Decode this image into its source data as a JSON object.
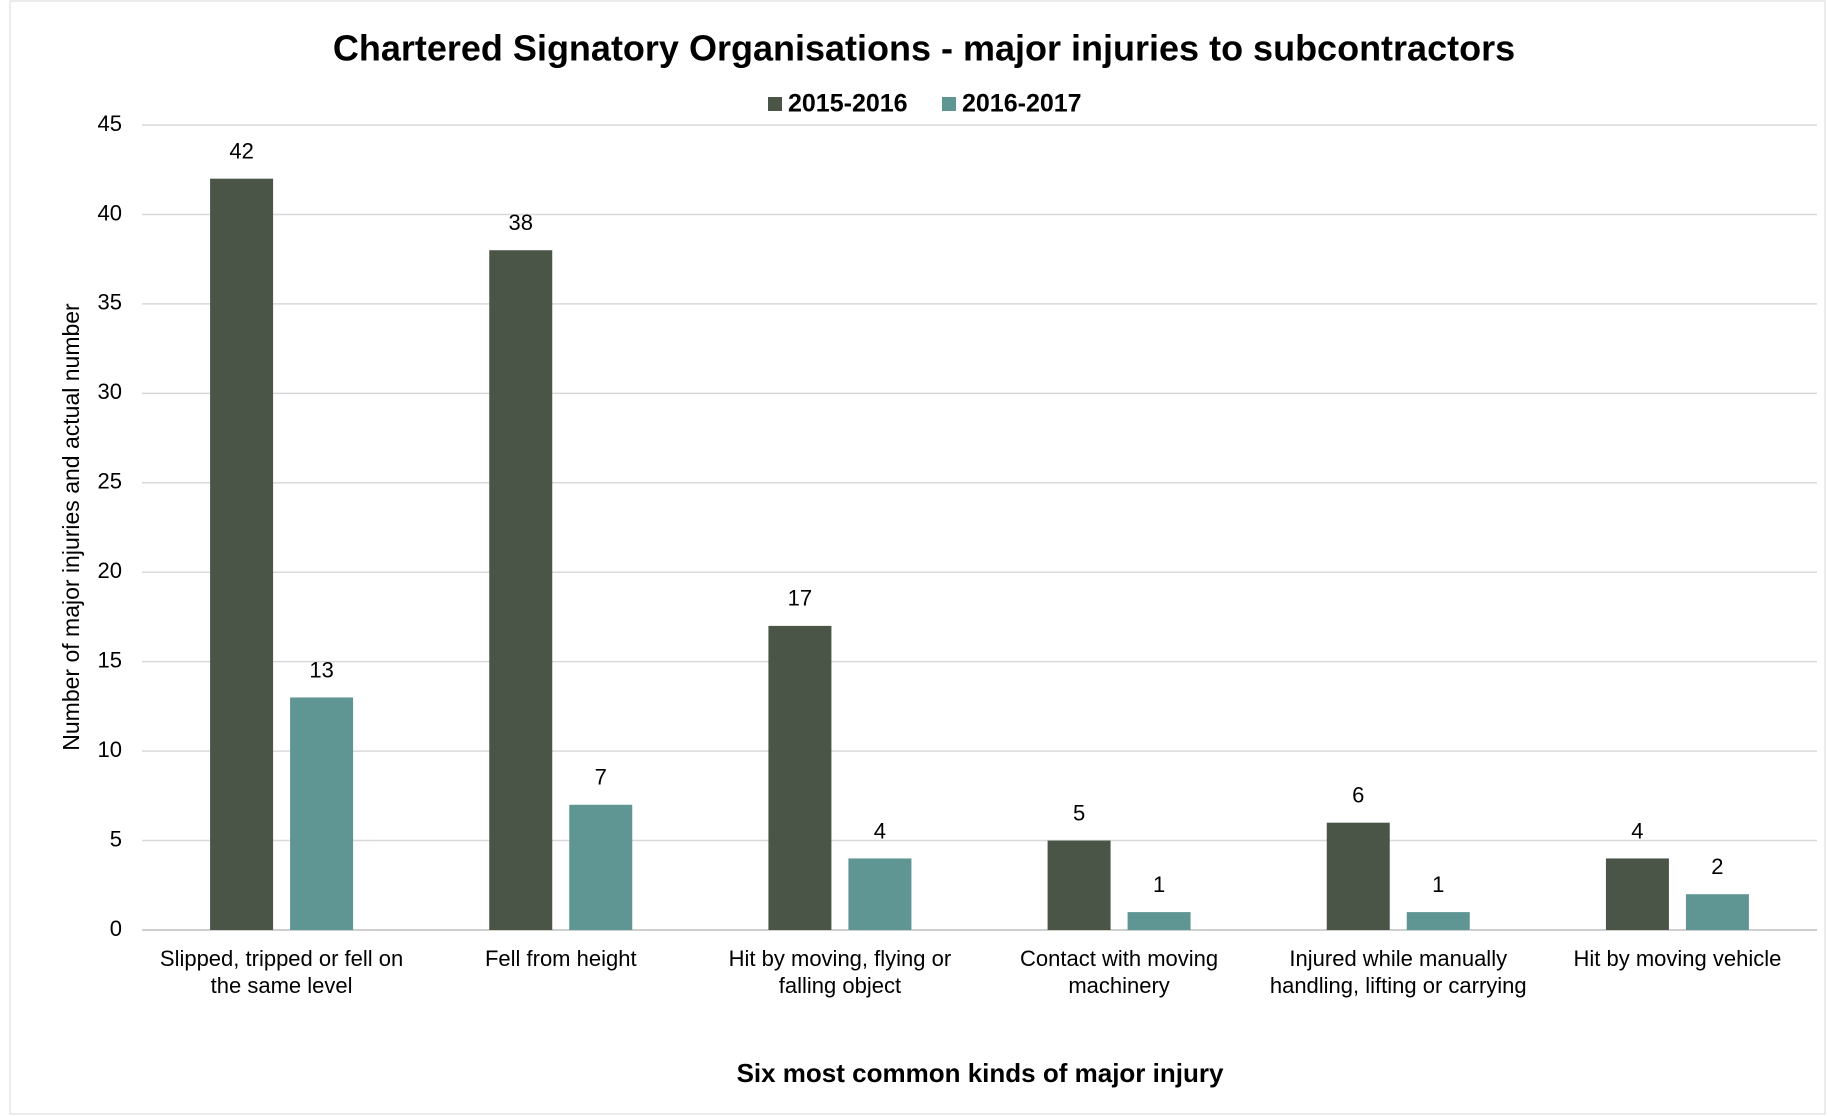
{
  "chart_data": {
    "type": "bar",
    "title": "Chartered Signatory Organisations - major injuries to subcontractors",
    "x_label": "Six most common kinds of major injury",
    "y_label": "Number of major injuries and actual number",
    "categories": [
      "Slipped, tripped or fell on the same level",
      "Fell from height",
      "Hit by moving, flying or falling object",
      "Contact with moving machinery",
      "Injured while manually handling, lifting or carrying",
      "Hit by moving vehicle"
    ],
    "series": [
      {
        "name": "2015-2016",
        "color": "#4a5548",
        "values": [
          42,
          38,
          17,
          5,
          6,
          4
        ]
      },
      {
        "name": "2016-2017",
        "color": "#5f9592",
        "values": [
          13,
          7,
          4,
          1,
          1,
          2
        ]
      }
    ],
    "ylim": [
      0,
      45
    ],
    "yticks": [
      0,
      5,
      10,
      15,
      20,
      25,
      30,
      35,
      40,
      45
    ],
    "grid": true,
    "legend": "top"
  }
}
